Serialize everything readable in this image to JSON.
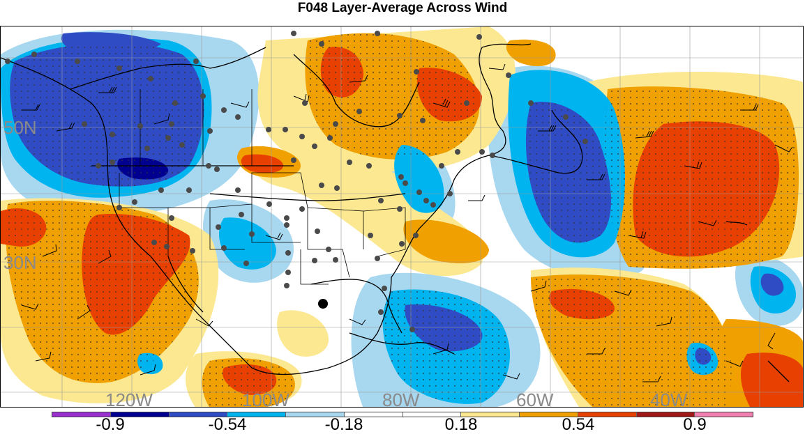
{
  "title": "F048 Layer-Average Across Wind",
  "map": {
    "lat_labels": [
      "50N",
      "30N"
    ],
    "lon_labels": [
      "120W",
      "100W",
      "80W",
      "60W",
      "40W"
    ],
    "highlight_marker": "black-dot"
  },
  "legend": {
    "colors": [
      "#9b30d0",
      "#000090",
      "#2f4cc4",
      "#00b4f0",
      "#a8d8f0",
      "#ffffff",
      "#ffffff",
      "#fbe890",
      "#f0a000",
      "#e84000",
      "#a01818",
      "#f080b0"
    ],
    "tick_labels": [
      "-0.9",
      "-0.54",
      "-0.18",
      "0.18",
      "0.54",
      "0.9"
    ]
  }
}
